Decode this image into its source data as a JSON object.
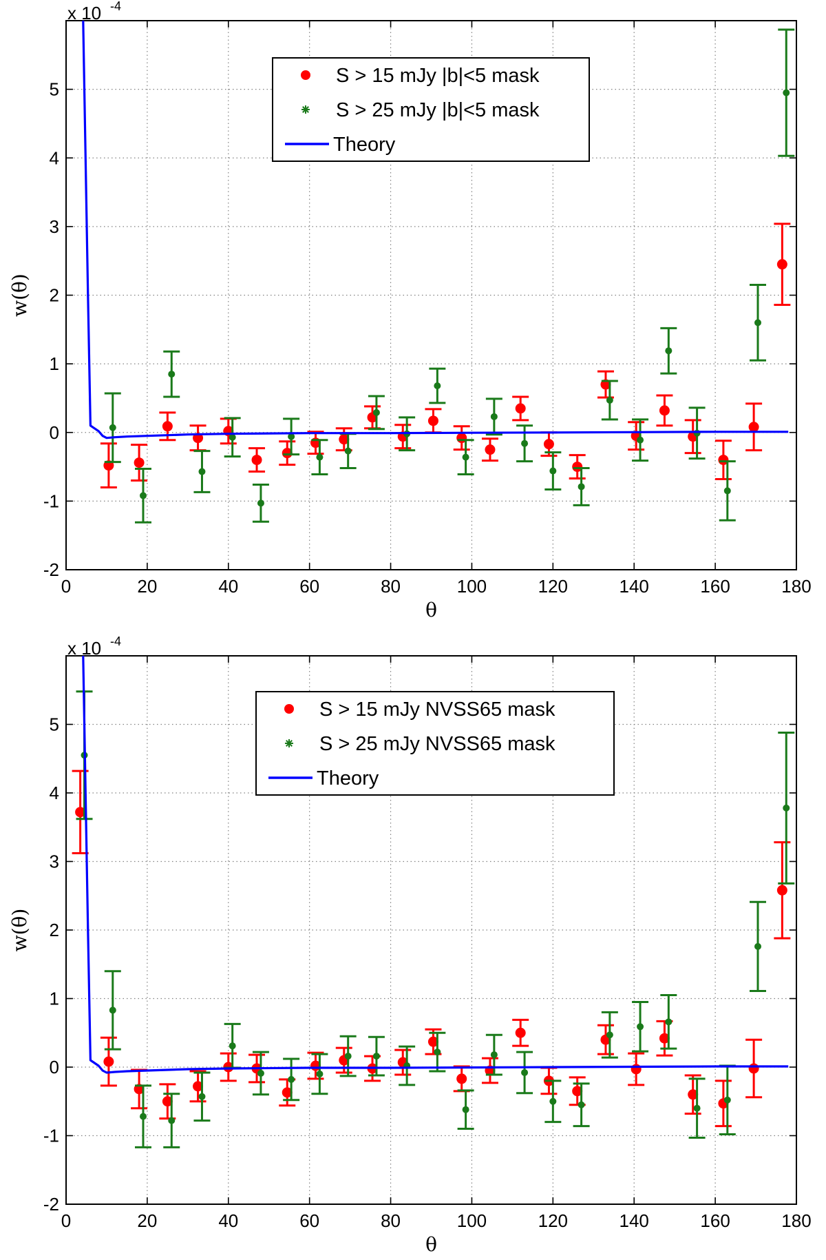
{
  "colors": {
    "red": "#ff0000",
    "green": "#1a7a1a",
    "blue": "#0000ff",
    "axes": "#000000",
    "grid": "#808080"
  },
  "chart_data": [
    {
      "type": "scatter",
      "xlabel": "θ",
      "ylabel": "w(θ)",
      "xlim": [
        0,
        180
      ],
      "ylim": [
        -2,
        6
      ],
      "xticks": [
        0,
        20,
        40,
        60,
        80,
        100,
        120,
        140,
        160,
        180
      ],
      "yticks": [
        -2,
        -1,
        0,
        1,
        2,
        3,
        4,
        5
      ],
      "multiplier_base": "x 10",
      "multiplier_exp": "-4",
      "grid": true,
      "legend_position": "top-center",
      "legend": [
        "S > 15 mJy |b|<5 mask",
        "S > 25 mJy |b|<5 mask",
        "Theory"
      ],
      "series": [
        {
          "name": "S > 15 mJy |b|<5 mask",
          "marker": "dot",
          "color": "red",
          "x": [
            10.5,
            18,
            25,
            32.5,
            40,
            47,
            54.5,
            61.5,
            68.5,
            75.5,
            83,
            90.5,
            97.5,
            104.5,
            112,
            119,
            126,
            133,
            140.5,
            147.5,
            154.5,
            162,
            169.5,
            176.5
          ],
          "y": [
            -0.48,
            -0.44,
            0.09,
            -0.08,
            0.02,
            -0.4,
            -0.3,
            -0.15,
            -0.1,
            0.22,
            -0.06,
            0.17,
            -0.08,
            -0.25,
            0.35,
            -0.17,
            -0.5,
            0.7,
            -0.05,
            0.32,
            -0.06,
            -0.4,
            0.08,
            2.45
          ],
          "err": [
            0.32,
            0.26,
            0.2,
            0.18,
            0.18,
            0.17,
            0.17,
            0.16,
            0.16,
            0.16,
            0.17,
            0.17,
            0.17,
            0.16,
            0.17,
            0.17,
            0.17,
            0.19,
            0.2,
            0.22,
            0.24,
            0.28,
            0.34,
            0.59
          ]
        },
        {
          "name": "S > 25 mJy |b|<5 mask",
          "marker": "star",
          "color": "green",
          "x": [
            11.5,
            19,
            26,
            33.5,
            41,
            48,
            55.5,
            62.5,
            69.5,
            76.5,
            84,
            91.5,
            98.5,
            105.5,
            113,
            120,
            127,
            134,
            141.5,
            148.5,
            155.5,
            163,
            170.5,
            177.5
          ],
          "y": [
            0.07,
            -0.92,
            0.85,
            -0.57,
            -0.07,
            -1.03,
            -0.06,
            -0.36,
            -0.27,
            0.29,
            -0.02,
            0.68,
            -0.36,
            0.23,
            -0.16,
            -0.56,
            -0.79,
            0.47,
            -0.11,
            1.19,
            -0.01,
            -0.85,
            1.6,
            4.95
          ],
          "err": [
            0.5,
            0.39,
            0.33,
            0.3,
            0.28,
            0.27,
            0.26,
            0.25,
            0.25,
            0.24,
            0.24,
            0.25,
            0.25,
            0.26,
            0.26,
            0.27,
            0.27,
            0.28,
            0.3,
            0.33,
            0.37,
            0.43,
            0.55,
            0.92
          ]
        },
        {
          "name": "Theory",
          "marker": "line",
          "color": "blue",
          "x": [
            4.2,
            4.8,
            5.4,
            6,
            8,
            9,
            10,
            12,
            15,
            20,
            30,
            40,
            60,
            80,
            100,
            120,
            140,
            160,
            178
          ],
          "y": [
            6,
            4,
            2,
            0.1,
            0.02,
            -0.05,
            -0.08,
            -0.07,
            -0.06,
            -0.05,
            -0.03,
            -0.02,
            -0.01,
            -0.01,
            -0.005,
            0,
            0.005,
            0.01,
            0.01
          ]
        }
      ]
    },
    {
      "type": "scatter",
      "xlabel": "θ",
      "ylabel": "w(θ)",
      "xlim": [
        0,
        180
      ],
      "ylim": [
        -2,
        6
      ],
      "xticks": [
        0,
        20,
        40,
        60,
        80,
        100,
        120,
        140,
        160,
        180
      ],
      "yticks": [
        -2,
        -1,
        0,
        1,
        2,
        3,
        4,
        5
      ],
      "multiplier_base": "x 10",
      "multiplier_exp": "-4",
      "grid": true,
      "legend_position": "top-center",
      "legend": [
        "S > 15 mJy NVSS65 mask",
        "S > 25 mJy NVSS65 mask",
        "Theory"
      ],
      "series": [
        {
          "name": "S > 15 mJy NVSS65 mask",
          "marker": "dot",
          "color": "red",
          "x": [
            3.5,
            10.5,
            18,
            25,
            32.5,
            40,
            47,
            54.5,
            61.5,
            68.5,
            75.5,
            83,
            90.5,
            97.5,
            104.5,
            112,
            119,
            126,
            133,
            140.5,
            147.5,
            154.5,
            162,
            169.5,
            176.5
          ],
          "y": [
            3.72,
            0.08,
            -0.32,
            -0.5,
            -0.28,
            0,
            -0.02,
            -0.37,
            0.02,
            0.1,
            -0.02,
            0.07,
            0.37,
            -0.17,
            -0.05,
            0.5,
            -0.2,
            -0.35,
            0.4,
            -0.03,
            0.42,
            -0.4,
            -0.53,
            -0.02,
            2.58
          ],
          "err": [
            0.6,
            0.35,
            0.28,
            0.25,
            0.22,
            0.2,
            0.2,
            0.19,
            0.19,
            0.18,
            0.18,
            0.18,
            0.18,
            0.18,
            0.18,
            0.19,
            0.19,
            0.2,
            0.21,
            0.23,
            0.25,
            0.28,
            0.33,
            0.42,
            0.7
          ]
        },
        {
          "name": "S > 25 mJy NVSS65 mask",
          "marker": "star",
          "color": "green",
          "x": [
            4.5,
            11.5,
            19,
            26,
            33.5,
            41,
            48,
            55.5,
            62.5,
            69.5,
            76.5,
            84,
            91.5,
            98.5,
            105.5,
            113,
            120,
            127,
            134,
            141.5,
            148.5,
            155.5,
            163,
            170.5,
            177.5
          ],
          "y": [
            4.55,
            0.83,
            -0.72,
            -0.78,
            -0.43,
            0.31,
            -0.09,
            -0.18,
            -0.1,
            0.16,
            0.16,
            0.02,
            0.22,
            -0.62,
            0.18,
            -0.08,
            -0.5,
            -0.55,
            0.47,
            0.59,
            0.66,
            -0.6,
            -0.48,
            1.76,
            3.78
          ],
          "err": [
            0.93,
            0.57,
            0.45,
            0.39,
            0.35,
            0.32,
            0.31,
            0.3,
            0.29,
            0.29,
            0.28,
            0.28,
            0.28,
            0.28,
            0.29,
            0.3,
            0.3,
            0.31,
            0.33,
            0.36,
            0.39,
            0.43,
            0.5,
            0.65,
            1.1
          ]
        },
        {
          "name": "Theory",
          "marker": "line",
          "color": "blue",
          "x": [
            4.2,
            4.8,
            5.4,
            6,
            8,
            9,
            10,
            12,
            15,
            20,
            30,
            40,
            60,
            80,
            100,
            120,
            140,
            160,
            178
          ],
          "y": [
            6,
            4,
            2,
            0.1,
            0.02,
            -0.05,
            -0.08,
            -0.07,
            -0.06,
            -0.05,
            -0.03,
            -0.02,
            -0.01,
            -0.01,
            -0.005,
            0,
            0.005,
            0.01,
            0.01
          ]
        }
      ]
    }
  ]
}
